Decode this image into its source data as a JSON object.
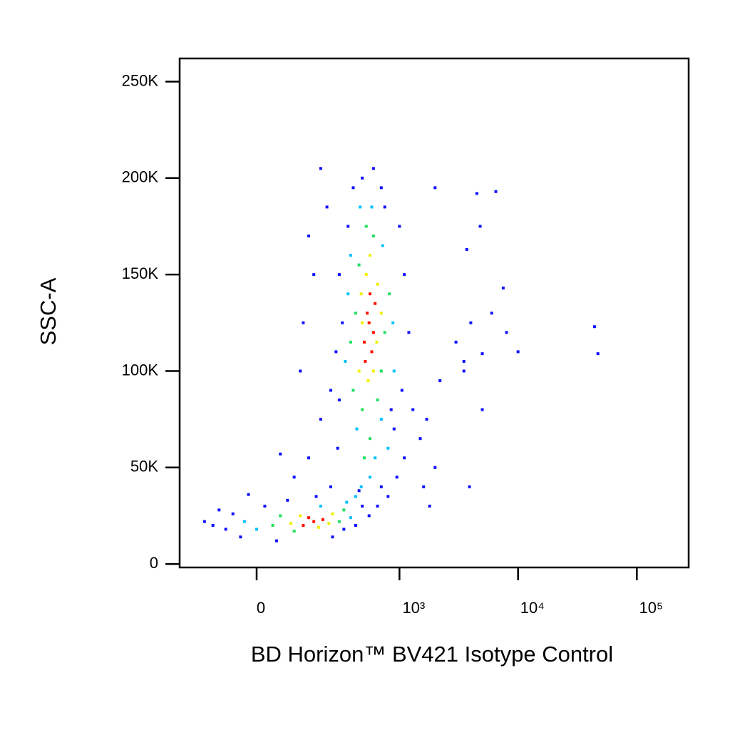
{
  "chart_data": {
    "type": "scatter",
    "xlabel": "BD Horizon™ BV421 Isotype Control",
    "ylabel": "SSC-A",
    "xscale": "biexponential",
    "xlim": [
      -266,
      273000
    ],
    "ylim": [
      -1800,
      262000
    ],
    "xticks": [
      0,
      {
        "value": 1000,
        "label": "10³"
      },
      {
        "value": 10000,
        "label": "10⁴"
      },
      {
        "value": 100000,
        "label": "10⁵"
      }
    ],
    "yticks": [
      0,
      {
        "value": 50000,
        "label": "50K"
      },
      {
        "value": 100000,
        "label": "100K"
      },
      {
        "value": 150000,
        "label": "150K"
      },
      {
        "value": 200000,
        "label": "200K"
      },
      {
        "value": 250000,
        "label": "250K"
      }
    ],
    "series": [
      {
        "color": "#1010ff",
        "x": [
          -120,
          -80,
          -60,
          -150,
          -40,
          -100,
          20,
          80,
          50,
          180,
          260,
          330,
          420,
          480,
          -20,
          100,
          150,
          60,
          290,
          300,
          250,
          320,
          280,
          300,
          360,
          400,
          480,
          600,
          700,
          750,
          1000,
          1100,
          1200,
          1050,
          900,
          1100,
          950,
          800,
          650,
          550,
          450,
          700,
          850,
          1300,
          1500,
          1600,
          2000,
          1800,
          2200,
          3000,
          4000,
          6000,
          8000,
          10000,
          3500,
          5000,
          3900,
          1700,
          2000,
          4500,
          6500,
          4800,
          3700,
          7500,
          44000,
          47000,
          5000,
          3500,
          170,
          150,
          230,
          200,
          130,
          120,
          200,
          250
        ],
        "y": [
          20000,
          18000,
          26000,
          22000,
          14000,
          28000,
          30000,
          33000,
          12000,
          35000,
          14000,
          18000,
          20000,
          30000,
          36000,
          45000,
          55000,
          57000,
          60000,
          85000,
          90000,
          125000,
          110000,
          150000,
          175000,
          195000,
          200000,
          205000,
          195000,
          185000,
          175000,
          150000,
          120000,
          90000,
          70000,
          55000,
          45000,
          35000,
          30000,
          25000,
          38000,
          40000,
          80000,
          80000,
          65000,
          40000,
          50000,
          30000,
          95000,
          115000,
          125000,
          130000,
          120000,
          110000,
          105000,
          80000,
          40000,
          75000,
          195000,
          192000,
          193000,
          175000,
          163000,
          143000,
          123000,
          109000,
          109000,
          100000,
          150000,
          170000,
          185000,
          205000,
          125000,
          100000,
          75000,
          40000
        ]
      },
      {
        "color": "#00c0ff",
        "x": [
          0,
          -30,
          380,
          350,
          420,
          200,
          340,
          880,
          380,
          720,
          580,
          460,
          430,
          700,
          560,
          620,
          900,
          360,
          800,
          470
        ],
        "y": [
          18000,
          22000,
          24000,
          32000,
          35000,
          30000,
          105000,
          125000,
          160000,
          165000,
          185000,
          185000,
          70000,
          75000,
          45000,
          55000,
          100000,
          140000,
          60000,
          40000
        ]
      },
      {
        "color": "#20e060",
        "x": [
          40,
          300,
          60,
          330,
          100,
          400,
          750,
          420,
          600,
          520,
          700,
          450,
          480,
          650,
          820,
          380,
          560,
          500
        ],
        "y": [
          20000,
          22000,
          25000,
          28000,
          17000,
          90000,
          120000,
          130000,
          170000,
          175000,
          100000,
          155000,
          80000,
          85000,
          140000,
          115000,
          65000,
          55000
        ]
      },
      {
        "color": "#f0f000",
        "x": [
          90,
          240,
          190,
          120,
          260,
          450,
          640,
          480,
          650,
          520,
          600,
          700,
          470,
          560,
          540
        ],
        "y": [
          21000,
          21000,
          19000,
          25000,
          26000,
          100000,
          115000,
          125000,
          145000,
          150000,
          100000,
          130000,
          140000,
          160000,
          95000
        ]
      },
      {
        "color": "#ff1000",
        "x": [
          130,
          170,
          210,
          150,
          500,
          550,
          600,
          530,
          580,
          620,
          560,
          510
        ],
        "y": [
          20000,
          22000,
          23000,
          24000,
          115000,
          125000,
          120000,
          130000,
          110000,
          135000,
          140000,
          105000
        ]
      }
    ]
  }
}
